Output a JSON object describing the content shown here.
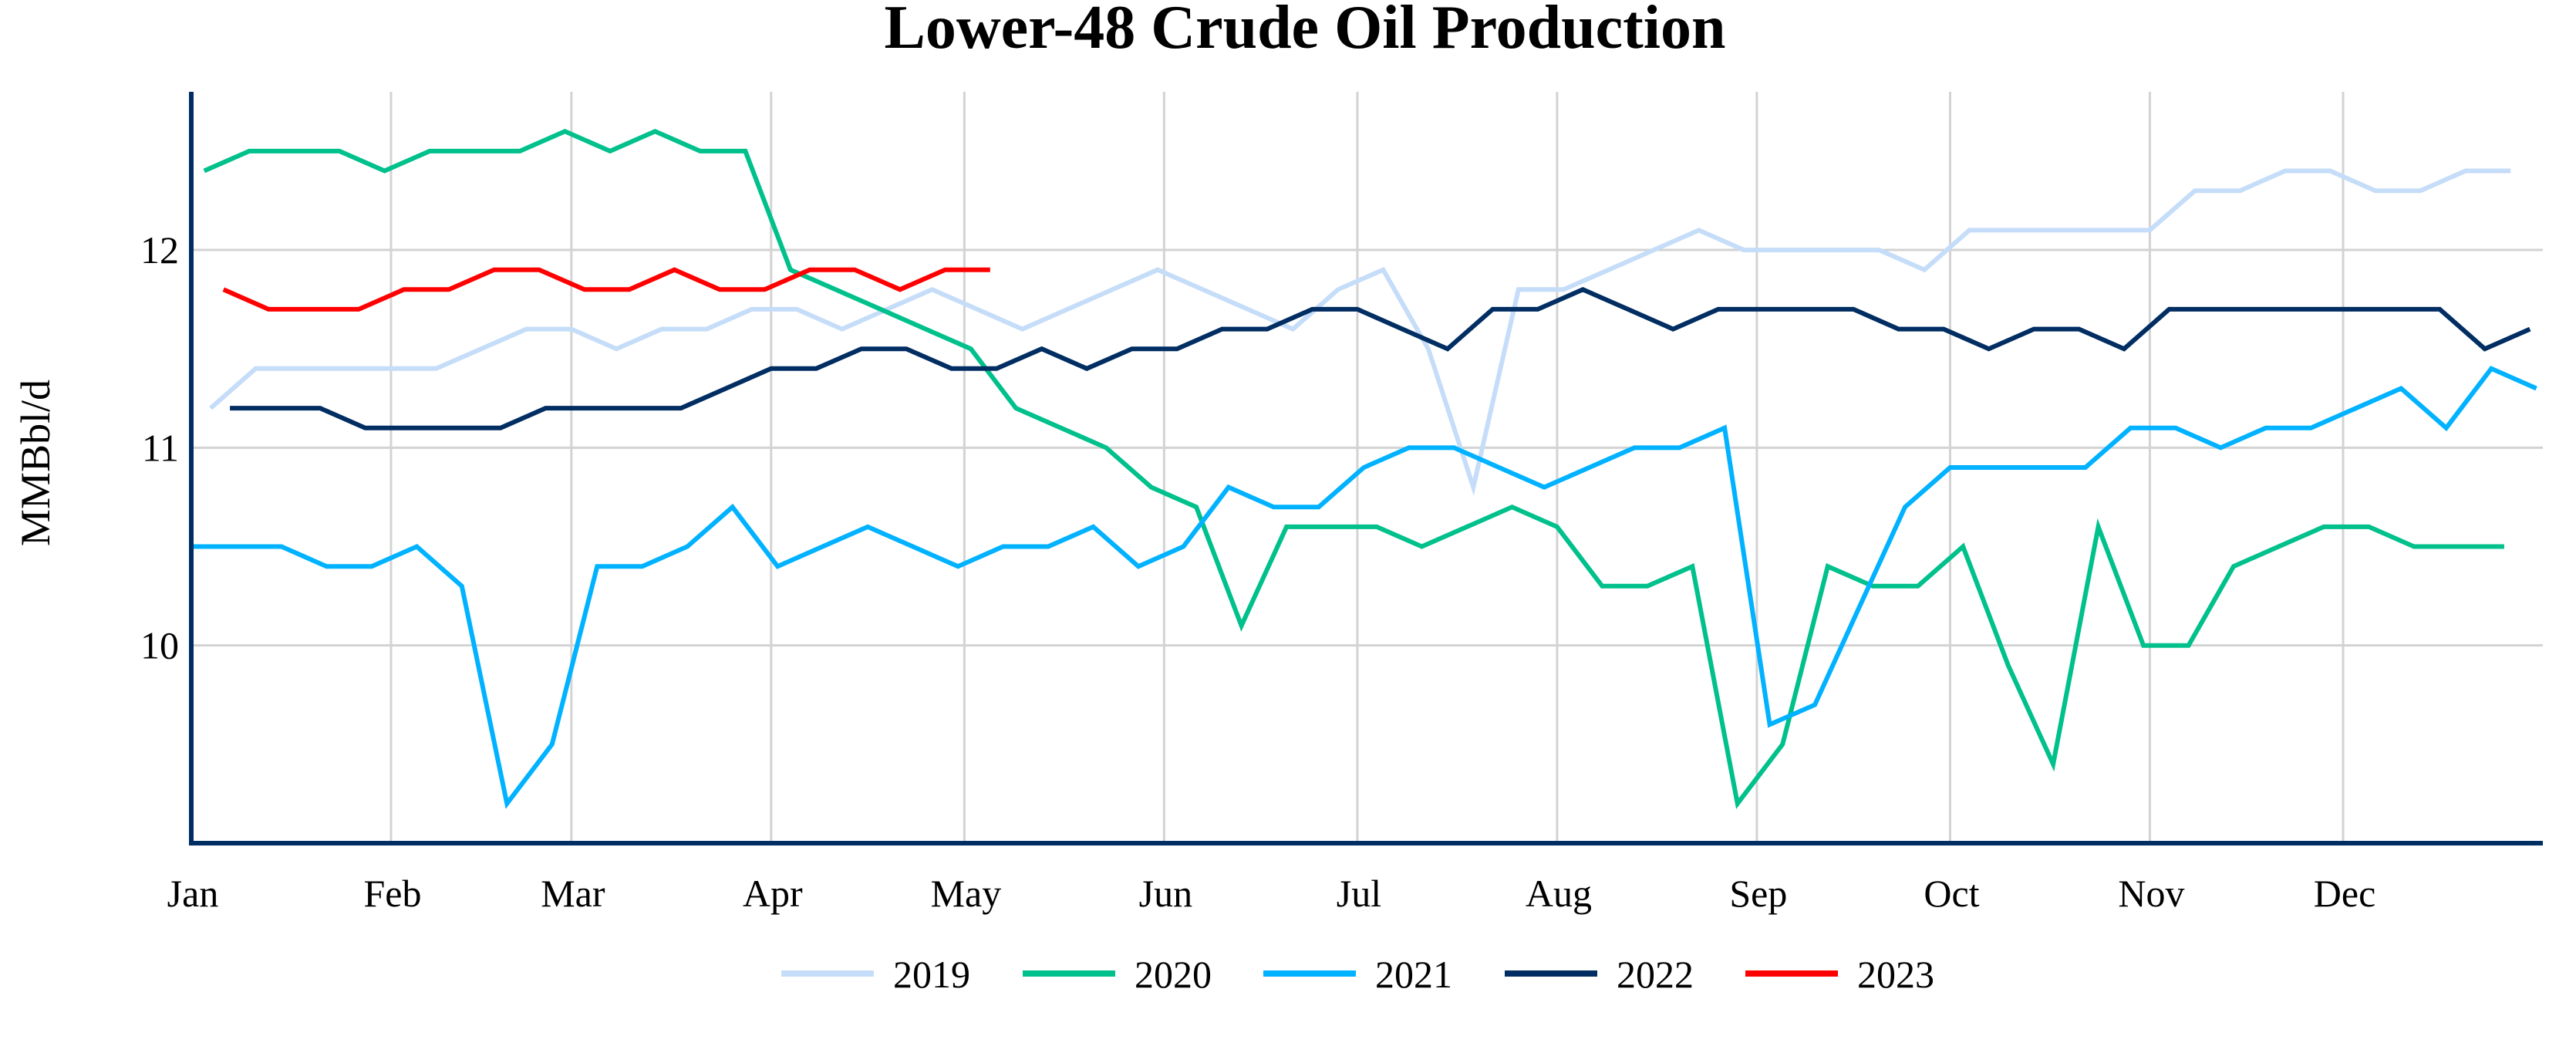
{
  "chart_data": {
    "type": "line",
    "title": "Lower-48 Crude Oil Production",
    "xlabel": "",
    "ylabel": "MMBbl/d",
    "ylim": [
      9,
      12.8
    ],
    "yticks": [
      10,
      11,
      12
    ],
    "xticks": [
      "Jan",
      "Feb",
      "Mar",
      "Apr",
      "May",
      "Jun",
      "Jul",
      "Aug",
      "Sep",
      "Oct",
      "Nov",
      "Dec"
    ],
    "grid": true,
    "legend_position": "bottom",
    "series": [
      {
        "name": "2019",
        "color": "#c5ddf8",
        "start": "Jan 04",
        "interval_days": 7,
        "values": [
          11.2,
          11.4,
          11.4,
          11.4,
          11.4,
          11.4,
          11.5,
          11.6,
          11.6,
          11.5,
          11.6,
          11.6,
          11.7,
          11.7,
          11.6,
          11.7,
          11.8,
          11.7,
          11.6,
          11.7,
          11.8,
          11.9,
          11.8,
          11.7,
          11.6,
          11.8,
          11.9,
          11.5,
          10.8,
          11.8,
          11.8,
          11.9,
          12.0,
          12.1,
          12.0,
          12.0,
          12.0,
          12.0,
          11.9,
          12.1,
          12.1,
          12.1,
          12.1,
          12.1,
          12.3,
          12.3,
          12.4,
          12.4,
          12.3,
          12.3,
          12.4,
          12.4
        ]
      },
      {
        "name": "2020",
        "color": "#00c08b",
        "start": "Jan 03",
        "interval_days": 7,
        "values": [
          12.4,
          12.5,
          12.5,
          12.5,
          12.4,
          12.5,
          12.5,
          12.5,
          12.6,
          12.5,
          12.6,
          12.5,
          12.5,
          11.9,
          11.8,
          11.7,
          11.6,
          11.5,
          11.2,
          11.1,
          11.0,
          10.8,
          10.7,
          10.1,
          10.6,
          10.6,
          10.6,
          10.5,
          10.6,
          10.7,
          10.6,
          10.3,
          10.3,
          10.4,
          9.2,
          9.5,
          10.4,
          10.3,
          10.3,
          10.5,
          9.9,
          9.4,
          10.6,
          10.0,
          10.0,
          10.4,
          10.5,
          10.6,
          10.6,
          10.5,
          10.5,
          10.5
        ]
      },
      {
        "name": "2021",
        "color": "#00b2ff",
        "start": "Jan 01",
        "interval_days": 7,
        "values": [
          10.5,
          10.5,
          10.5,
          10.4,
          10.4,
          10.5,
          10.3,
          9.2,
          9.5,
          10.4,
          10.4,
          10.5,
          10.7,
          10.4,
          10.5,
          10.6,
          10.5,
          10.4,
          10.5,
          10.5,
          10.6,
          10.4,
          10.5,
          10.8,
          10.7,
          10.7,
          10.9,
          11.0,
          11.0,
          10.9,
          10.8,
          10.9,
          11.0,
          11.0,
          11.1,
          9.6,
          9.7,
          10.2,
          10.7,
          10.9,
          10.9,
          10.9,
          10.9,
          11.1,
          11.1,
          11.0,
          11.1,
          11.1,
          11.2,
          11.3,
          11.1,
          11.4,
          11.3
        ]
      },
      {
        "name": "2022",
        "color": "#002d62",
        "start": "Jan 07",
        "interval_days": 7,
        "values": [
          11.2,
          11.2,
          11.2,
          11.1,
          11.1,
          11.1,
          11.1,
          11.2,
          11.2,
          11.2,
          11.2,
          11.3,
          11.4,
          11.4,
          11.5,
          11.5,
          11.4,
          11.4,
          11.5,
          11.4,
          11.5,
          11.5,
          11.6,
          11.6,
          11.7,
          11.7,
          11.6,
          11.5,
          11.7,
          11.7,
          11.8,
          11.7,
          11.6,
          11.7,
          11.7,
          11.7,
          11.7,
          11.6,
          11.6,
          11.5,
          11.6,
          11.6,
          11.5,
          11.7,
          11.7,
          11.7,
          11.7,
          11.7,
          11.7,
          11.7,
          11.5,
          11.6
        ]
      },
      {
        "name": "2023",
        "color": "#ff0000",
        "start": "Jan 06",
        "interval_days": 7,
        "values": [
          11.8,
          11.7,
          11.7,
          11.7,
          11.8,
          11.8,
          11.9,
          11.9,
          11.8,
          11.8,
          11.9,
          11.8,
          11.8,
          11.9,
          11.9,
          11.8,
          11.9,
          11.9
        ]
      }
    ],
    "axis_color": "#002d62",
    "grid_color": "#d3d3d3"
  }
}
